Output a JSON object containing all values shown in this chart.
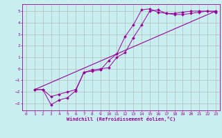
{
  "title": "",
  "xlabel": "Windchill (Refroidissement éolien,°C)",
  "bg_color": "#c8eef0",
  "grid_color": "#b0b0b0",
  "line_color": "#990099",
  "xlim": [
    -0.5,
    23.5
  ],
  "ylim": [
    -3.6,
    5.6
  ],
  "xticks": [
    0,
    1,
    2,
    3,
    4,
    5,
    6,
    7,
    8,
    9,
    10,
    11,
    12,
    13,
    14,
    15,
    16,
    17,
    18,
    19,
    20,
    21,
    22,
    23
  ],
  "yticks": [
    -3,
    -2,
    -1,
    0,
    1,
    2,
    3,
    4,
    5
  ],
  "line1_x": [
    1,
    2,
    3,
    4,
    5,
    6,
    7,
    8,
    9,
    10,
    11,
    12,
    13,
    14,
    15,
    16,
    17,
    18,
    19,
    20,
    21,
    22,
    23
  ],
  "line1_y": [
    -1.8,
    -1.8,
    -3.1,
    -2.7,
    -2.5,
    -1.9,
    -0.3,
    -0.2,
    -0.1,
    0.7,
    1.3,
    2.8,
    3.8,
    5.1,
    5.2,
    4.9,
    4.8,
    4.8,
    4.9,
    5.0,
    5.0,
    5.0,
    5.0
  ],
  "line2_x": [
    1,
    2,
    3,
    4,
    5,
    6,
    7,
    8,
    9,
    10,
    11,
    12,
    13,
    14,
    15,
    16,
    17,
    18,
    19,
    20,
    21,
    22,
    23
  ],
  "line2_y": [
    -1.8,
    -1.8,
    -2.4,
    -2.2,
    -2.0,
    -1.8,
    -0.3,
    -0.1,
    0.0,
    0.1,
    1.0,
    1.4,
    2.7,
    3.8,
    5.0,
    5.1,
    4.8,
    4.7,
    4.7,
    4.8,
    4.9,
    5.0,
    4.9
  ],
  "line3_x": [
    1,
    23
  ],
  "line3_y": [
    -1.8,
    5.0
  ],
  "tick_fontsize": 4.5,
  "xlabel_fontsize": 5.0
}
